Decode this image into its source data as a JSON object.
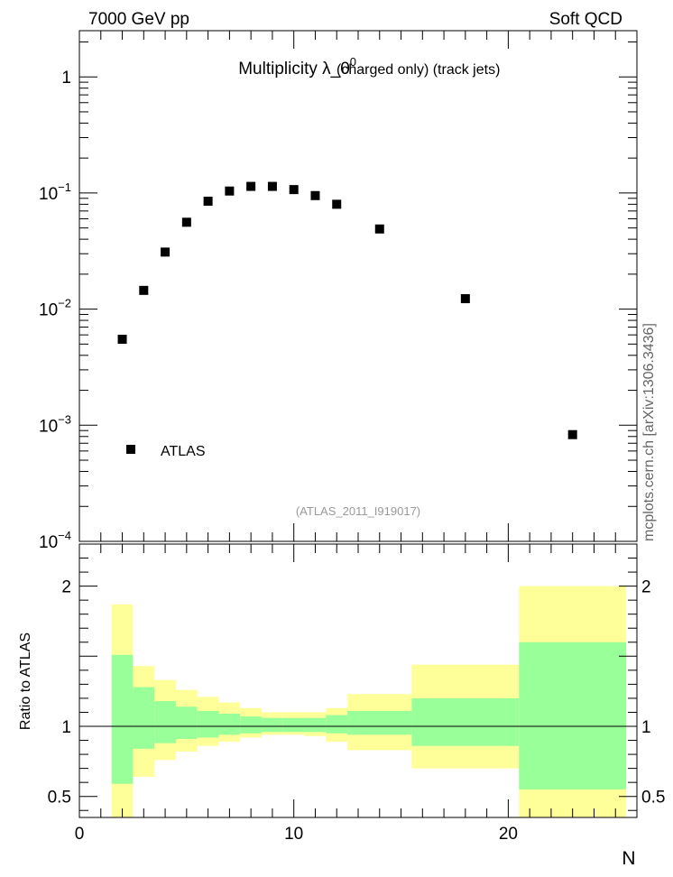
{
  "header": {
    "energy_label": "7000 GeV pp",
    "category_label": "Soft QCD"
  },
  "side_label": "mcplots.cern.ch [arXiv:1306.3436]",
  "colors": {
    "stat_band": "#99ff99",
    "total_band": "#ffff99",
    "marker": "#000000",
    "analysis_id": "#999999"
  },
  "chart_data": [
    {
      "type": "scatter",
      "title_main": "Multiplicity  λ_0",
      "title_sup": "0",
      "title_suffix": "(charged only) (track jets)",
      "analysis_id": "(ATLAS_2011_I919017)",
      "legend": [
        {
          "label": "ATLAS",
          "marker": "square"
        }
      ],
      "yscale": "log",
      "xlim": [
        0,
        26
      ],
      "ylim": [
        0.0001,
        2.5
      ],
      "ytick_labels": [
        {
          "value": 1,
          "base": "1",
          "exp": ""
        },
        {
          "value": 0.1,
          "base": "10",
          "exp": "−1"
        },
        {
          "value": 0.01,
          "base": "10",
          "exp": "−2"
        },
        {
          "value": 0.001,
          "base": "10",
          "exp": "−3"
        },
        {
          "value": 0.0001,
          "base": "10",
          "exp": "−4"
        }
      ],
      "series": [
        {
          "name": "ATLAS",
          "points": [
            {
              "x": 2,
              "y": 0.0055
            },
            {
              "x": 3,
              "y": 0.0145
            },
            {
              "x": 4,
              "y": 0.031
            },
            {
              "x": 5,
              "y": 0.056
            },
            {
              "x": 6,
              "y": 0.085
            },
            {
              "x": 7,
              "y": 0.104
            },
            {
              "x": 8,
              "y": 0.114
            },
            {
              "x": 9,
              "y": 0.114
            },
            {
              "x": 10,
              "y": 0.107
            },
            {
              "x": 11,
              "y": 0.095
            },
            {
              "x": 12,
              "y": 0.08
            },
            {
              "x": 14,
              "y": 0.049
            },
            {
              "x": 18,
              "y": 0.0123
            },
            {
              "x": 23,
              "y": 0.00083
            }
          ]
        }
      ]
    },
    {
      "type": "area",
      "ylabel": "Ratio to ATLAS",
      "xlabel": "N",
      "xlim": [
        0,
        26
      ],
      "ylim": [
        0.35,
        2.3
      ],
      "xtick_labels": [
        {
          "value": 0,
          "label": "0"
        },
        {
          "value": 10,
          "label": "10"
        },
        {
          "value": 20,
          "label": "20"
        }
      ],
      "ytick_labels": [
        {
          "value": 2,
          "label": "2"
        },
        {
          "value": 1,
          "label": "1"
        },
        {
          "value": 0.5,
          "label": "0.5"
        }
      ],
      "reference_line": 1,
      "bins": [
        {
          "lo": 1.5,
          "hi": 2.5,
          "stat": [
            0.59,
            1.51
          ],
          "total": [
            0.35,
            1.87
          ]
        },
        {
          "lo": 2.5,
          "hi": 3.5,
          "stat": [
            0.84,
            1.28
          ],
          "total": [
            0.64,
            1.43
          ]
        },
        {
          "lo": 3.5,
          "hi": 4.5,
          "stat": [
            0.88,
            1.18
          ],
          "total": [
            0.76,
            1.33
          ]
        },
        {
          "lo": 4.5,
          "hi": 5.5,
          "stat": [
            0.91,
            1.14
          ],
          "total": [
            0.82,
            1.26
          ]
        },
        {
          "lo": 5.5,
          "hi": 6.5,
          "stat": [
            0.92,
            1.11
          ],
          "total": [
            0.86,
            1.21
          ]
        },
        {
          "lo": 6.5,
          "hi": 7.5,
          "stat": [
            0.94,
            1.09
          ],
          "total": [
            0.89,
            1.17
          ]
        },
        {
          "lo": 7.5,
          "hi": 8.5,
          "stat": [
            0.95,
            1.07
          ],
          "total": [
            0.92,
            1.13
          ]
        },
        {
          "lo": 8.5,
          "hi": 9.5,
          "stat": [
            0.96,
            1.06
          ],
          "total": [
            0.94,
            1.1
          ]
        },
        {
          "lo": 9.5,
          "hi": 10.5,
          "stat": [
            0.96,
            1.06
          ],
          "total": [
            0.94,
            1.1
          ]
        },
        {
          "lo": 10.5,
          "hi": 11.5,
          "stat": [
            0.96,
            1.06
          ],
          "total": [
            0.93,
            1.1
          ]
        },
        {
          "lo": 11.5,
          "hi": 12.5,
          "stat": [
            0.95,
            1.08
          ],
          "total": [
            0.89,
            1.13
          ]
        },
        {
          "lo": 12.5,
          "hi": 15.5,
          "stat": [
            0.94,
            1.11
          ],
          "total": [
            0.83,
            1.23
          ]
        },
        {
          "lo": 15.5,
          "hi": 20.5,
          "stat": [
            0.86,
            1.2
          ],
          "total": [
            0.7,
            1.44
          ]
        },
        {
          "lo": 20.5,
          "hi": 25.5,
          "stat": [
            0.55,
            1.6
          ],
          "total": [
            0.35,
            2.0
          ]
        }
      ]
    }
  ]
}
